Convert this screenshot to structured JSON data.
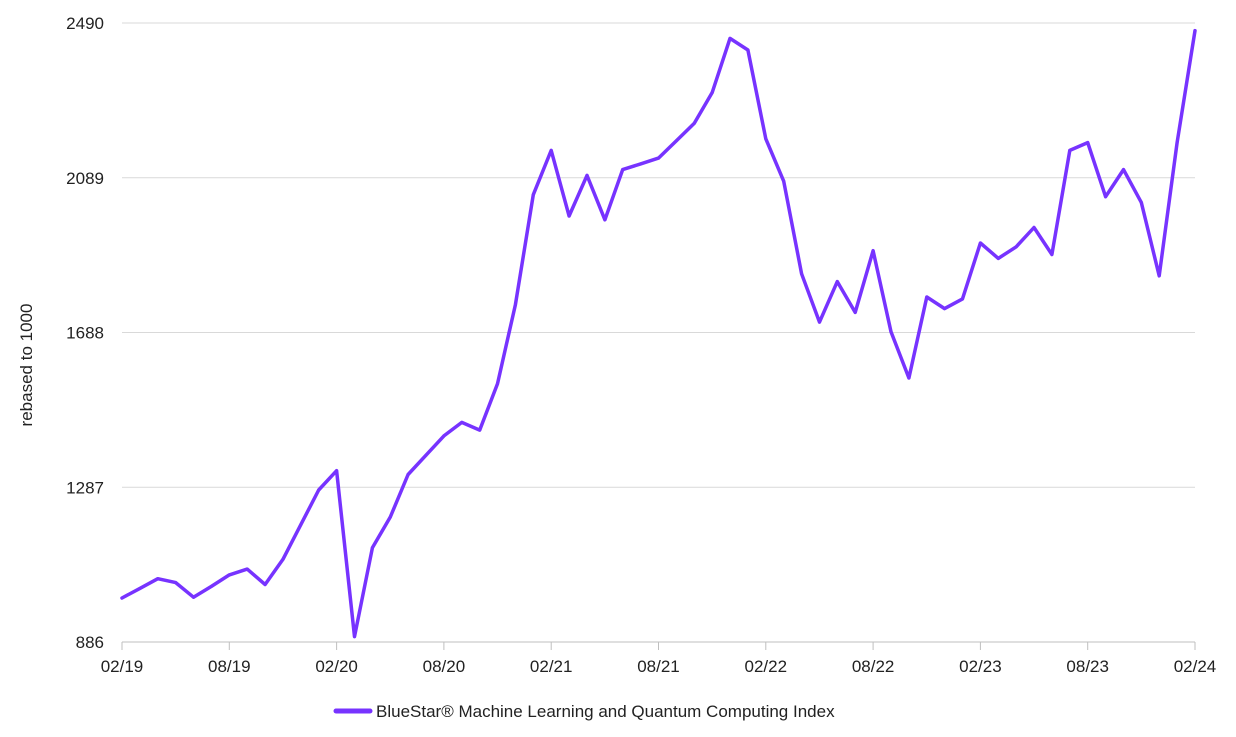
{
  "chart_data": {
    "type": "line",
    "title": "",
    "xlabel": "",
    "ylabel": "rebased to 1000",
    "x_ticks": [
      "02/19",
      "08/19",
      "02/20",
      "08/20",
      "02/21",
      "08/21",
      "02/22",
      "08/22",
      "02/23",
      "08/23",
      "02/24"
    ],
    "y_ticks": [
      "886",
      "1287",
      "1688",
      "2089",
      "2490"
    ],
    "ylim": [
      886,
      2490
    ],
    "grid": "horizontal",
    "legend_position": "bottom-center",
    "series": [
      {
        "name": "BlueStar® Machine Learning and Quantum Computing Index",
        "color": "#7733ff",
        "x": [
          "2019-02",
          "2019-03",
          "2019-04",
          "2019-05",
          "2019-06",
          "2019-07",
          "2019-08",
          "2019-09",
          "2019-10",
          "2019-11",
          "2019-12",
          "2020-01",
          "2020-02",
          "2020-03",
          "2020-04",
          "2020-05",
          "2020-06",
          "2020-07",
          "2020-08",
          "2020-09",
          "2020-10",
          "2020-11",
          "2020-12",
          "2021-01",
          "2021-02",
          "2021-03",
          "2021-04",
          "2021-05",
          "2021-06",
          "2021-07",
          "2021-08",
          "2021-09",
          "2021-10",
          "2021-11",
          "2021-12",
          "2022-01",
          "2022-02",
          "2022-03",
          "2022-04",
          "2022-05",
          "2022-06",
          "2022-07",
          "2022-08",
          "2022-09",
          "2022-10",
          "2022-11",
          "2022-12",
          "2023-01",
          "2023-02",
          "2023-03",
          "2023-04",
          "2023-05",
          "2023-06",
          "2023-07",
          "2023-08",
          "2023-09",
          "2023-10",
          "2023-11",
          "2023-12",
          "2024-01",
          "2024-02"
        ],
        "values": [
          1000,
          1025,
          1050,
          1040,
          1002,
          1030,
          1060,
          1075,
          1035,
          1100,
          1190,
          1280,
          1330,
          900,
          1130,
          1210,
          1320,
          1370,
          1420,
          1455,
          1435,
          1555,
          1760,
          2045,
          2160,
          1990,
          2095,
          1980,
          2110,
          2125,
          2140,
          2185,
          2230,
          2310,
          2450,
          2420,
          2190,
          2080,
          1840,
          1715,
          1820,
          1740,
          1900,
          1690,
          1570,
          1780,
          1750,
          1775,
          1920,
          1880,
          1910,
          1960,
          1890,
          2160,
          2180,
          2040,
          2110,
          2025,
          1835,
          2180,
          2470
        ]
      }
    ]
  }
}
